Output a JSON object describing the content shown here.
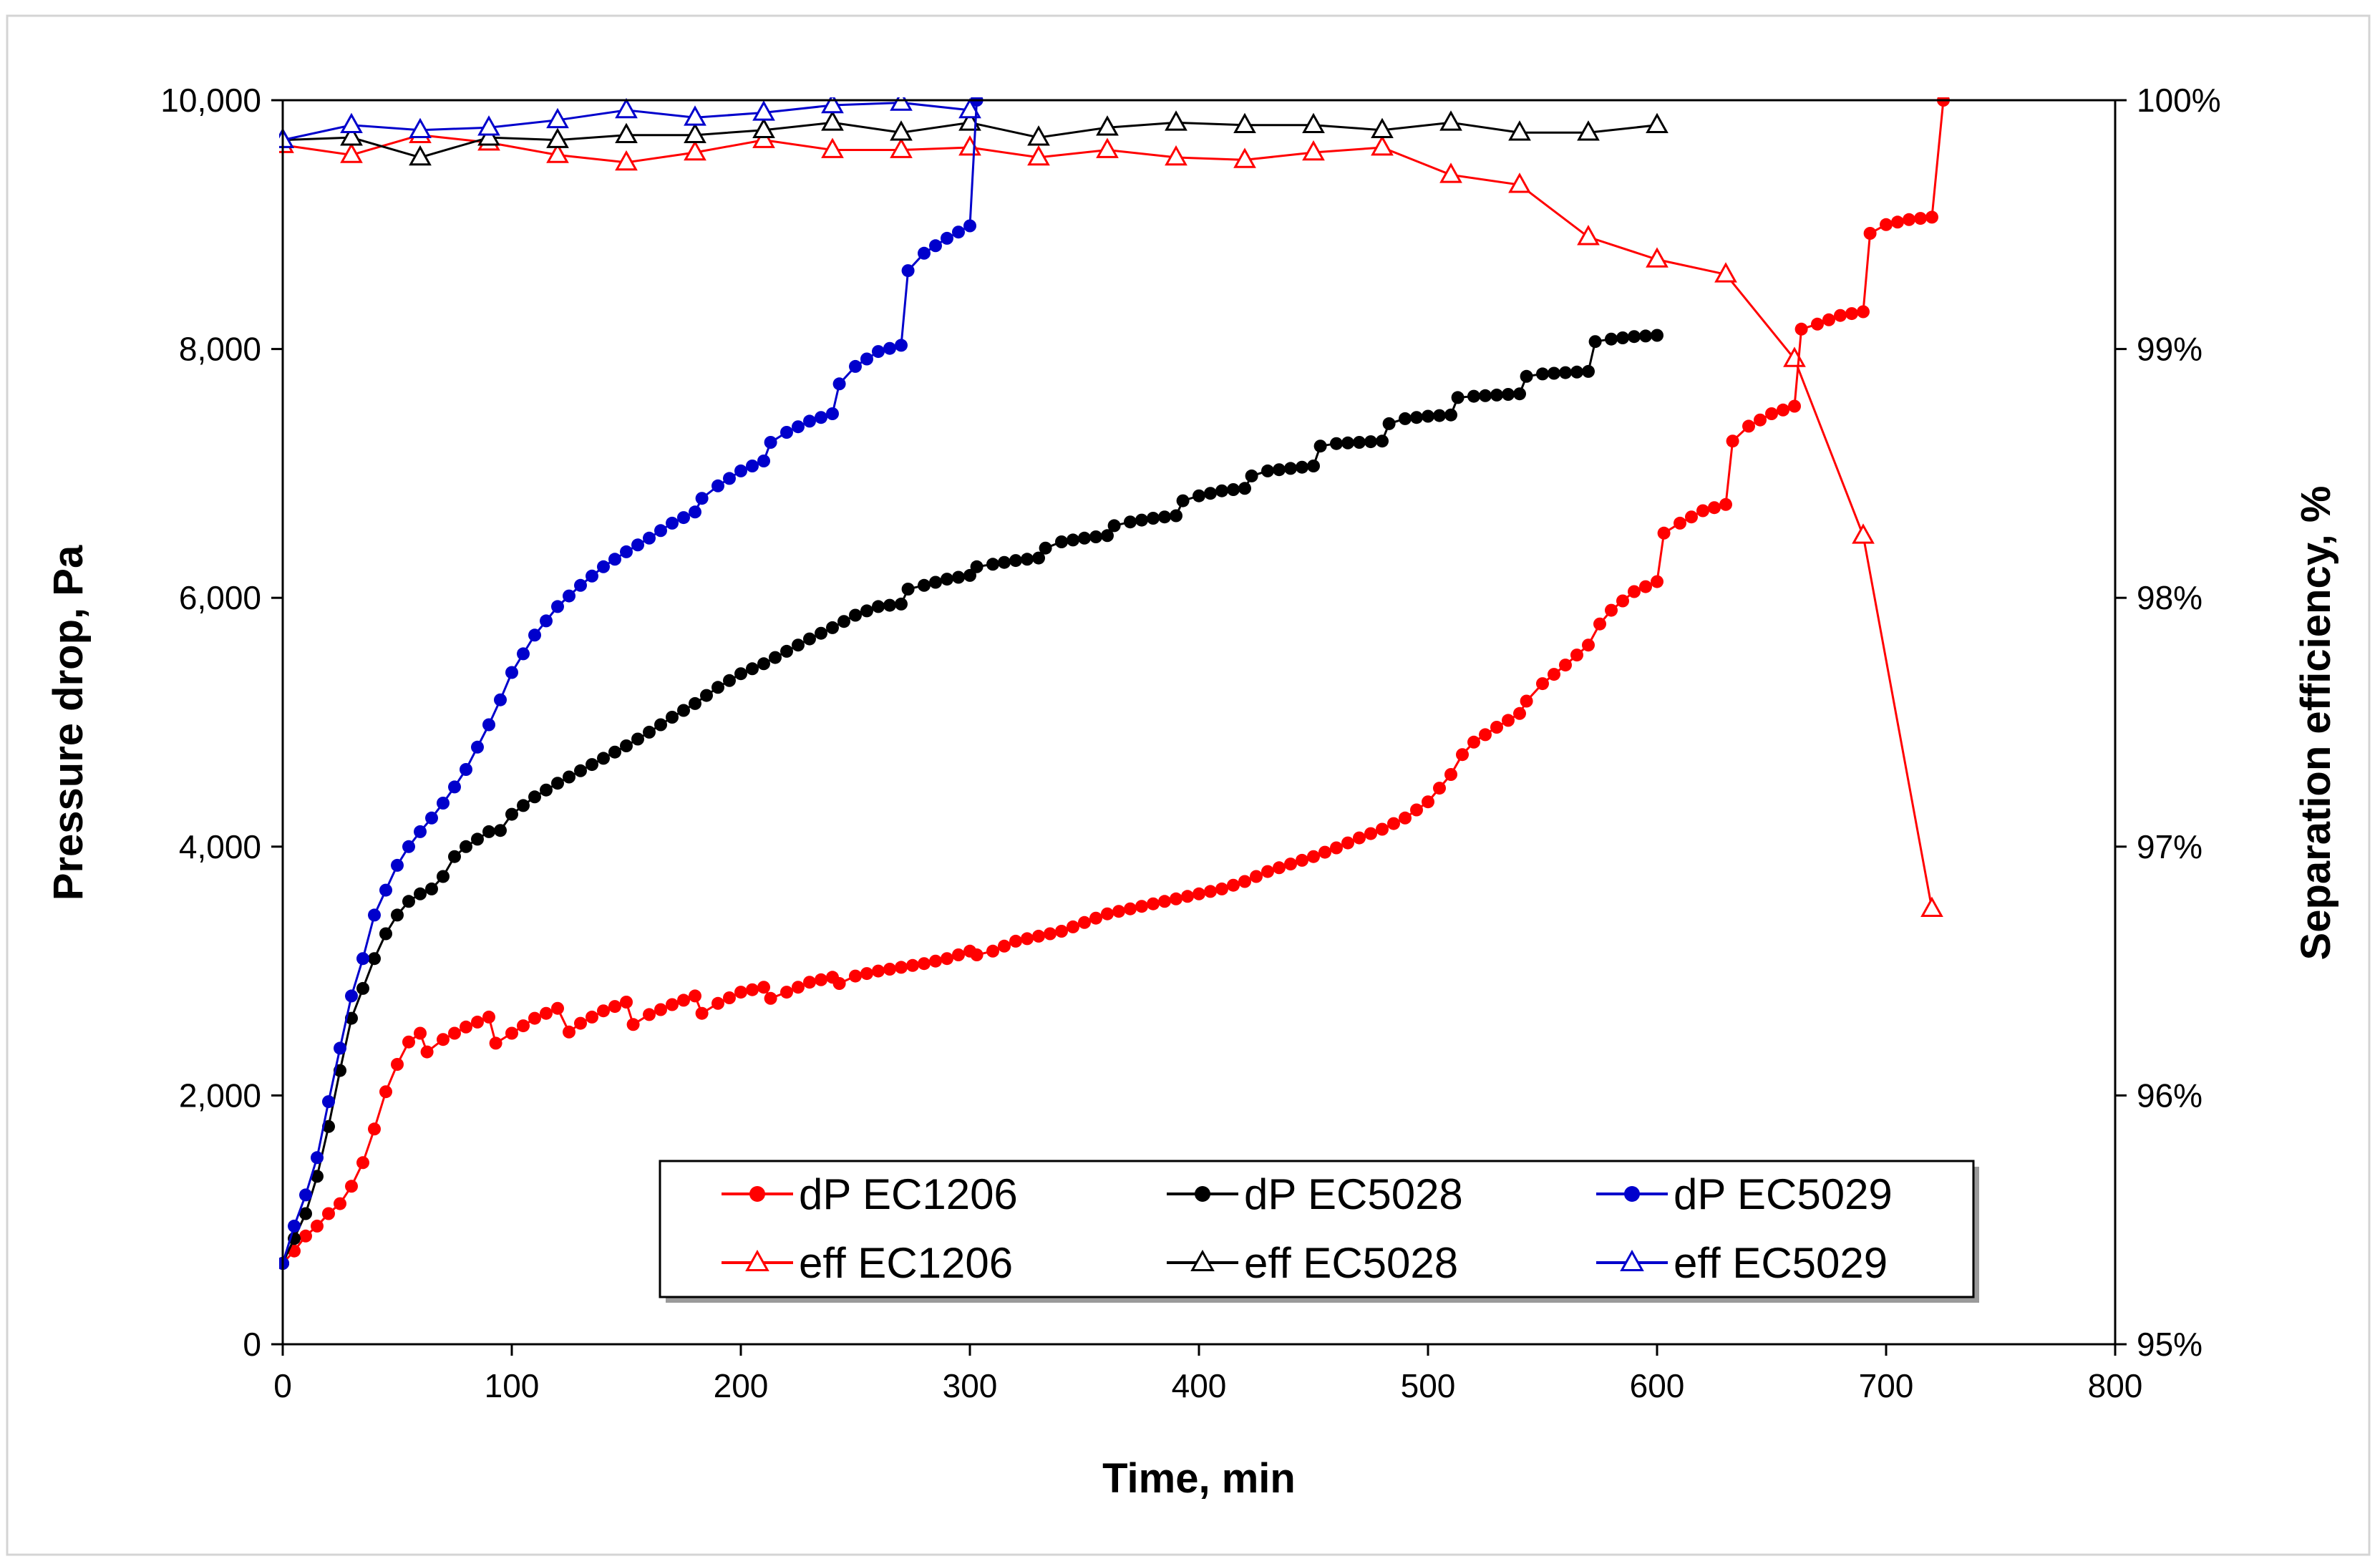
{
  "chart_data": {
    "type": "line",
    "title": "",
    "xlabel": "Time, min",
    "ylabel": "Pressure drop, Pa",
    "y2label": "Separation efficiency, %",
    "xlim": [
      0,
      800
    ],
    "ylim": [
      0,
      10000
    ],
    "y2lim": [
      95,
      100
    ],
    "x_ticks": [
      0,
      100,
      200,
      300,
      400,
      500,
      600,
      700,
      800
    ],
    "x_tick_labels": [
      "0",
      "100",
      "200",
      "300",
      "400",
      "500",
      "600",
      "700",
      "800"
    ],
    "y_ticks": [
      0,
      2000,
      4000,
      6000,
      8000,
      10000
    ],
    "y_tick_labels": [
      "0",
      "2,000",
      "4,000",
      "6,000",
      "8,000",
      "10,000"
    ],
    "y2_ticks": [
      95,
      96,
      97,
      98,
      99,
      100
    ],
    "y2_tick_labels": [
      "95%",
      "96%",
      "97%",
      "98%",
      "99%",
      "100%"
    ],
    "grid": false,
    "legend_position": "bottom-center",
    "colors": {
      "EC1206": "#ff0000",
      "EC5028": "#000000",
      "EC5029": "#0000cc"
    },
    "series": [
      {
        "name": "dP EC1206",
        "axis": "left",
        "marker": "circle",
        "color": "#ff0000",
        "anchors": [
          [
            0,
            650
          ],
          [
            5,
            750
          ],
          [
            10,
            870
          ],
          [
            15,
            950
          ],
          [
            20,
            1050
          ],
          [
            25,
            1130
          ],
          [
            30,
            1270
          ],
          [
            35,
            1460
          ],
          [
            40,
            1730
          ],
          [
            45,
            2030
          ],
          [
            50,
            2250
          ],
          [
            55,
            2430
          ],
          [
            60,
            2500
          ],
          [
            63,
            2350
          ],
          [
            70,
            2450
          ],
          [
            80,
            2550
          ],
          [
            90,
            2630
          ],
          [
            93,
            2420
          ],
          [
            100,
            2500
          ],
          [
            110,
            2620
          ],
          [
            120,
            2700
          ],
          [
            125,
            2510
          ],
          [
            130,
            2580
          ],
          [
            140,
            2680
          ],
          [
            150,
            2750
          ],
          [
            153,
            2570
          ],
          [
            160,
            2650
          ],
          [
            170,
            2730
          ],
          [
            180,
            2800
          ],
          [
            183,
            2660
          ],
          [
            190,
            2740
          ],
          [
            200,
            2830
          ],
          [
            210,
            2870
          ],
          [
            213,
            2780
          ],
          [
            220,
            2830
          ],
          [
            230,
            2910
          ],
          [
            240,
            2950
          ],
          [
            243,
            2900
          ],
          [
            250,
            2960
          ],
          [
            260,
            3000
          ],
          [
            270,
            3030
          ],
          [
            280,
            3060
          ],
          [
            290,
            3100
          ],
          [
            300,
            3160
          ],
          [
            303,
            3130
          ],
          [
            310,
            3160
          ],
          [
            320,
            3240
          ],
          [
            330,
            3280
          ],
          [
            340,
            3320
          ],
          [
            350,
            3390
          ],
          [
            360,
            3460
          ],
          [
            370,
            3500
          ],
          [
            380,
            3540
          ],
          [
            390,
            3580
          ],
          [
            400,
            3620
          ],
          [
            410,
            3660
          ],
          [
            420,
            3720
          ],
          [
            430,
            3800
          ],
          [
            440,
            3860
          ],
          [
            450,
            3920
          ],
          [
            460,
            3990
          ],
          [
            470,
            4070
          ],
          [
            480,
            4140
          ],
          [
            490,
            4230
          ],
          [
            500,
            4360
          ],
          [
            510,
            4580
          ],
          [
            515,
            4740
          ],
          [
            520,
            4840
          ],
          [
            530,
            4960
          ],
          [
            540,
            5070
          ],
          [
            543,
            5170
          ],
          [
            550,
            5310
          ],
          [
            560,
            5460
          ],
          [
            570,
            5620
          ],
          [
            575,
            5790
          ],
          [
            580,
            5900
          ],
          [
            590,
            6050
          ],
          [
            600,
            6130
          ],
          [
            603,
            6520
          ],
          [
            610,
            6600
          ],
          [
            620,
            6700
          ],
          [
            630,
            6750
          ],
          [
            633,
            7260
          ],
          [
            640,
            7380
          ],
          [
            650,
            7480
          ],
          [
            660,
            7540
          ],
          [
            663,
            8160
          ],
          [
            670,
            8200
          ],
          [
            680,
            8270
          ],
          [
            690,
            8300
          ],
          [
            693,
            8930
          ],
          [
            700,
            9000
          ],
          [
            710,
            9040
          ],
          [
            720,
            9060
          ],
          [
            725,
            10000
          ]
        ]
      },
      {
        "name": "dP EC5028",
        "axis": "left",
        "marker": "circle",
        "color": "#000000",
        "anchors": [
          [
            0,
            650
          ],
          [
            5,
            850
          ],
          [
            10,
            1050
          ],
          [
            15,
            1350
          ],
          [
            20,
            1750
          ],
          [
            25,
            2200
          ],
          [
            30,
            2620
          ],
          [
            35,
            2860
          ],
          [
            40,
            3100
          ],
          [
            45,
            3300
          ],
          [
            50,
            3450
          ],
          [
            55,
            3560
          ],
          [
            60,
            3620
          ],
          [
            65,
            3660
          ],
          [
            70,
            3760
          ],
          [
            75,
            3920
          ],
          [
            80,
            4000
          ],
          [
            85,
            4060
          ],
          [
            90,
            4120
          ],
          [
            95,
            4130
          ],
          [
            100,
            4260
          ],
          [
            110,
            4400
          ],
          [
            120,
            4510
          ],
          [
            130,
            4610
          ],
          [
            140,
            4710
          ],
          [
            150,
            4810
          ],
          [
            160,
            4920
          ],
          [
            170,
            5040
          ],
          [
            180,
            5150
          ],
          [
            190,
            5280
          ],
          [
            200,
            5390
          ],
          [
            210,
            5470
          ],
          [
            220,
            5570
          ],
          [
            230,
            5670
          ],
          [
            240,
            5760
          ],
          [
            250,
            5860
          ],
          [
            260,
            5930
          ],
          [
            270,
            5950
          ],
          [
            273,
            6070
          ],
          [
            280,
            6100
          ],
          [
            290,
            6150
          ],
          [
            300,
            6180
          ],
          [
            303,
            6250
          ],
          [
            310,
            6270
          ],
          [
            320,
            6300
          ],
          [
            330,
            6320
          ],
          [
            333,
            6400
          ],
          [
            340,
            6450
          ],
          [
            350,
            6480
          ],
          [
            360,
            6500
          ],
          [
            363,
            6580
          ],
          [
            370,
            6610
          ],
          [
            380,
            6640
          ],
          [
            390,
            6660
          ],
          [
            393,
            6780
          ],
          [
            400,
            6820
          ],
          [
            410,
            6860
          ],
          [
            420,
            6880
          ],
          [
            423,
            6980
          ],
          [
            430,
            7020
          ],
          [
            440,
            7040
          ],
          [
            450,
            7060
          ],
          [
            453,
            7220
          ],
          [
            460,
            7240
          ],
          [
            470,
            7250
          ],
          [
            480,
            7260
          ],
          [
            483,
            7400
          ],
          [
            490,
            7440
          ],
          [
            500,
            7460
          ],
          [
            510,
            7470
          ],
          [
            513,
            7610
          ],
          [
            520,
            7620
          ],
          [
            530,
            7630
          ],
          [
            540,
            7640
          ],
          [
            543,
            7780
          ],
          [
            550,
            7800
          ],
          [
            560,
            7810
          ],
          [
            570,
            7820
          ],
          [
            573,
            8060
          ],
          [
            580,
            8080
          ],
          [
            590,
            8100
          ],
          [
            600,
            8110
          ]
        ]
      },
      {
        "name": "dP EC5029",
        "axis": "left",
        "marker": "circle",
        "color": "#0000cc",
        "anchors": [
          [
            0,
            650
          ],
          [
            5,
            950
          ],
          [
            10,
            1200
          ],
          [
            15,
            1500
          ],
          [
            20,
            1950
          ],
          [
            25,
            2380
          ],
          [
            30,
            2800
          ],
          [
            35,
            3100
          ],
          [
            40,
            3450
          ],
          [
            45,
            3650
          ],
          [
            50,
            3850
          ],
          [
            55,
            4000
          ],
          [
            60,
            4120
          ],
          [
            65,
            4230
          ],
          [
            70,
            4350
          ],
          [
            75,
            4480
          ],
          [
            80,
            4620
          ],
          [
            85,
            4800
          ],
          [
            90,
            4980
          ],
          [
            95,
            5180
          ],
          [
            100,
            5400
          ],
          [
            110,
            5700
          ],
          [
            120,
            5930
          ],
          [
            130,
            6100
          ],
          [
            140,
            6250
          ],
          [
            150,
            6370
          ],
          [
            160,
            6480
          ],
          [
            170,
            6600
          ],
          [
            180,
            6690
          ],
          [
            183,
            6800
          ],
          [
            190,
            6900
          ],
          [
            200,
            7020
          ],
          [
            210,
            7100
          ],
          [
            213,
            7250
          ],
          [
            220,
            7330
          ],
          [
            230,
            7420
          ],
          [
            240,
            7480
          ],
          [
            243,
            7720
          ],
          [
            250,
            7860
          ],
          [
            260,
            7980
          ],
          [
            270,
            8030
          ],
          [
            273,
            8630
          ],
          [
            280,
            8770
          ],
          [
            290,
            8890
          ],
          [
            300,
            8990
          ],
          [
            303,
            10000
          ]
        ]
      },
      {
        "name": "eff EC1206",
        "axis": "right",
        "marker": "triangle-open",
        "color": "#ff0000",
        "x": [
          0,
          30,
          60,
          90,
          120,
          150,
          180,
          210,
          240,
          270,
          300,
          330,
          360,
          390,
          420,
          450,
          480,
          510,
          540,
          570,
          600,
          630,
          660,
          690,
          720
        ],
        "y": [
          99.82,
          99.78,
          99.86,
          99.83,
          99.78,
          99.75,
          99.79,
          99.84,
          99.8,
          99.8,
          99.81,
          99.77,
          99.8,
          99.77,
          99.76,
          99.79,
          99.81,
          99.7,
          99.66,
          99.45,
          99.36,
          99.3,
          98.96,
          98.25,
          96.75
        ]
      },
      {
        "name": "eff EC5028",
        "axis": "right",
        "marker": "triangle-open",
        "color": "#000000",
        "x": [
          0,
          30,
          60,
          90,
          120,
          150,
          180,
          210,
          240,
          270,
          300,
          330,
          360,
          390,
          420,
          450,
          480,
          510,
          540,
          570,
          600
        ],
        "y": [
          99.84,
          99.85,
          99.77,
          99.85,
          99.84,
          99.86,
          99.86,
          99.88,
          99.91,
          99.87,
          99.91,
          99.85,
          99.89,
          99.91,
          99.9,
          99.9,
          99.88,
          99.91,
          99.87,
          99.87,
          99.9
        ]
      },
      {
        "name": "eff EC5029",
        "axis": "right",
        "marker": "triangle-open",
        "color": "#0000cc",
        "x": [
          0,
          30,
          60,
          90,
          120,
          150,
          180,
          210,
          240,
          270,
          300
        ],
        "y": [
          99.84,
          99.9,
          99.88,
          99.89,
          99.92,
          99.96,
          99.93,
          99.95,
          99.98,
          99.99,
          99.96
        ]
      }
    ],
    "legend": [
      {
        "label": "dP EC1206",
        "series": 0
      },
      {
        "label": "dP EC5028",
        "series": 1
      },
      {
        "label": "dP EC5029",
        "series": 2
      },
      {
        "label": "eff EC1206",
        "series": 3
      },
      {
        "label": "eff EC5028",
        "series": 4
      },
      {
        "label": "eff EC5029",
        "series": 5
      }
    ]
  }
}
